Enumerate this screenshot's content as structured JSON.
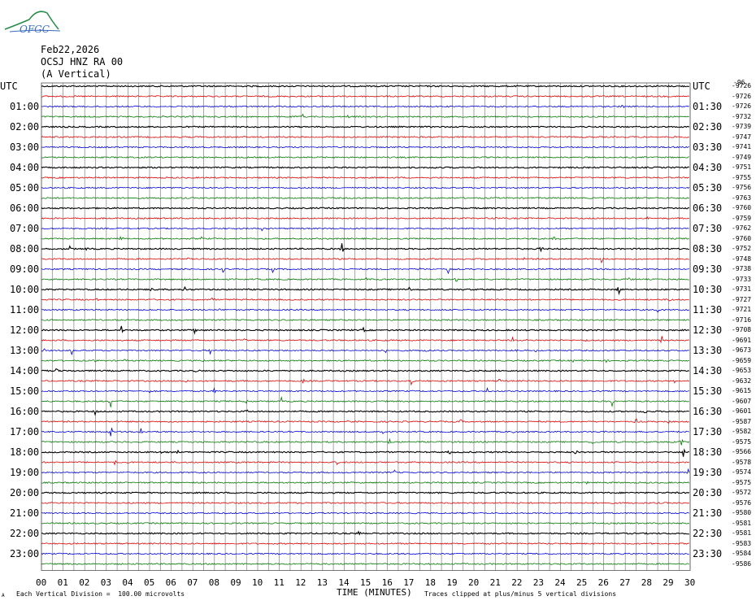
{
  "header": {
    "logo_text": "OFGC",
    "date": "Feb22,2026",
    "station": "OCSJ HNZ RA 00",
    "orientation": "(A Vertical)"
  },
  "axes": {
    "left_unit": "UTC",
    "right_unit": "UTC",
    "xlabel": "TIME (MINUTES)"
  },
  "footer": {
    "scale_note": "Each Vertical Division =  100.00 microvolts",
    "clip_note": "Traces clipped at plus/minus 5 vertical divisions",
    "corner_mark": "A"
  },
  "colors": {
    "trace_cycle": [
      "#000000",
      "#dd0000",
      "#0000dd",
      "#007700"
    ],
    "grid": "#808080"
  },
  "chart_data": {
    "type": "line",
    "title": "",
    "x_ticks": [
      "00",
      "01",
      "02",
      "03",
      "04",
      "05",
      "06",
      "07",
      "08",
      "09",
      "10",
      "11",
      "12",
      "13",
      "14",
      "15",
      "16",
      "17",
      "18",
      "19",
      "20",
      "21",
      "22",
      "23",
      "24",
      "25",
      "26",
      "27",
      "28",
      "29",
      "30"
    ],
    "xlim": [
      0,
      30
    ],
    "left_labels": [
      "UTC",
      "01:00",
      "02:00",
      "03:00",
      "04:00",
      "05:00",
      "06:00",
      "07:00",
      "08:00",
      "09:00",
      "10:00",
      "11:00",
      "12:00",
      "13:00",
      "14:00",
      "15:00",
      "16:00",
      "17:00",
      "18:00",
      "19:00",
      "20:00",
      "21:00",
      "22:00",
      "23:00"
    ],
    "right_labels": [
      "UTC",
      "01:30",
      "02:30",
      "03:30",
      "04:30",
      "05:30",
      "06:30",
      "07:30",
      "08:30",
      "09:30",
      "10:30",
      "11:30",
      "12:30",
      "13:30",
      "14:30",
      "15:30",
      "16:30",
      "17:30",
      "18:30",
      "19:30",
      "20:30",
      "21:30",
      "22:30",
      "23:30"
    ],
    "trace_offsets": [
      "-9726",
      "-9726",
      "-9726",
      "-9732",
      "-9739",
      "-9747",
      "-9741",
      "-9749",
      "-9751",
      "-9755",
      "-9756",
      "-9763",
      "-9760",
      "-9759",
      "-9762",
      "-9760",
      "-9752",
      "-9748",
      "-9738",
      "-9733",
      "-9731",
      "-9727",
      "-9721",
      "-9716",
      "-9708",
      "-9691",
      "-9673",
      "-9659",
      "-9653",
      "-9632",
      "-9615",
      "-9607",
      "-9601",
      "-9587",
      "-9582",
      "-9575",
      "-9566",
      "-9578",
      "-9574",
      "-9575",
      "-9572",
      "-9576",
      "-9580",
      "-9581",
      "-9581",
      "-9583",
      "-9584",
      "-9586"
    ],
    "top_offset_extra": "-96",
    "traces": 48,
    "events": [
      {
        "trace": 3,
        "minute": 12.1,
        "amp": 6
      },
      {
        "trace": 3,
        "minute": 14.2,
        "amp": 4
      },
      {
        "trace": 2,
        "minute": 26.9,
        "amp": 5
      },
      {
        "trace": 8,
        "minute": 18.3,
        "amp": 3
      },
      {
        "trace": 13,
        "minute": 21.0,
        "amp": 6
      },
      {
        "trace": 13,
        "minute": 28.0,
        "amp": 4
      },
      {
        "trace": 14,
        "minute": 10.2,
        "amp": 5
      },
      {
        "trace": 15,
        "minute": 3.7,
        "amp": 7
      },
      {
        "trace": 15,
        "minute": 7.4,
        "amp": 4
      },
      {
        "trace": 15,
        "minute": 23.7,
        "amp": 5
      },
      {
        "trace": 16,
        "minute": 1.3,
        "amp": 6
      },
      {
        "trace": 16,
        "minute": 13.9,
        "amp": 8
      },
      {
        "trace": 16,
        "minute": 23.1,
        "amp": 7
      },
      {
        "trace": 16,
        "minute": 2.1,
        "amp": 3
      },
      {
        "trace": 17,
        "minute": 6.8,
        "amp": 4
      },
      {
        "trace": 17,
        "minute": 25.9,
        "amp": 9
      },
      {
        "trace": 17,
        "minute": 22.3,
        "amp": 3
      },
      {
        "trace": 18,
        "minute": 8.4,
        "amp": 6
      },
      {
        "trace": 18,
        "minute": 10.7,
        "amp": 5
      },
      {
        "trace": 18,
        "minute": 18.8,
        "amp": 7
      },
      {
        "trace": 18,
        "minute": 17.5,
        "amp": 3
      },
      {
        "trace": 19,
        "minute": 19.2,
        "amp": 5
      },
      {
        "trace": 19,
        "minute": 27.2,
        "amp": 5
      },
      {
        "trace": 19,
        "minute": 15.0,
        "amp": 3
      },
      {
        "trace": 20,
        "minute": 6.6,
        "amp": 10
      },
      {
        "trace": 20,
        "minute": 17.0,
        "amp": 7
      },
      {
        "trace": 20,
        "minute": 26.7,
        "amp": 9
      },
      {
        "trace": 20,
        "minute": 5.1,
        "amp": 3
      },
      {
        "trace": 21,
        "minute": 2.6,
        "amp": 6
      },
      {
        "trace": 21,
        "minute": 7.9,
        "amp": 4
      },
      {
        "trace": 21,
        "minute": 21.0,
        "amp": 4
      },
      {
        "trace": 21,
        "minute": 29.1,
        "amp": 4
      },
      {
        "trace": 22,
        "minute": 28.5,
        "amp": 5
      },
      {
        "trace": 22,
        "minute": 8.2,
        "amp": 3
      },
      {
        "trace": 24,
        "minute": 3.7,
        "amp": 7
      },
      {
        "trace": 24,
        "minute": 7.1,
        "amp": 6
      },
      {
        "trace": 24,
        "minute": 14.9,
        "amp": 7
      },
      {
        "trace": 25,
        "minute": 9.4,
        "amp": 3
      },
      {
        "trace": 25,
        "minute": 21.8,
        "amp": 6
      },
      {
        "trace": 25,
        "minute": 25.2,
        "amp": 5
      },
      {
        "trace": 25,
        "minute": 28.7,
        "amp": 7
      },
      {
        "trace": 26,
        "minute": 0.1,
        "amp": 4
      },
      {
        "trace": 26,
        "minute": 1.4,
        "amp": 5
      },
      {
        "trace": 26,
        "minute": 7.8,
        "amp": 5
      },
      {
        "trace": 26,
        "minute": 14.4,
        "amp": 5
      },
      {
        "trace": 26,
        "minute": 15.9,
        "amp": 6
      },
      {
        "trace": 26,
        "minute": 17.8,
        "amp": 4
      },
      {
        "trace": 26,
        "minute": 22.0,
        "amp": 5
      },
      {
        "trace": 26,
        "minute": 22.9,
        "amp": 4
      },
      {
        "trace": 27,
        "minute": 2.5,
        "amp": 4
      },
      {
        "trace": 27,
        "minute": 3.8,
        "amp": 5
      },
      {
        "trace": 27,
        "minute": 7.5,
        "amp": 4
      },
      {
        "trace": 27,
        "minute": 24.6,
        "amp": 5
      },
      {
        "trace": 27,
        "minute": 26.1,
        "amp": 4
      },
      {
        "trace": 28,
        "minute": 0.7,
        "amp": 6
      },
      {
        "trace": 28,
        "minute": 7.2,
        "amp": 6
      },
      {
        "trace": 29,
        "minute": 6.7,
        "amp": 4
      },
      {
        "trace": 29,
        "minute": 12.1,
        "amp": 5
      },
      {
        "trace": 29,
        "minute": 17.1,
        "amp": 5
      },
      {
        "trace": 29,
        "minute": 21.2,
        "amp": 5
      },
      {
        "trace": 29,
        "minute": 29.3,
        "amp": 5
      },
      {
        "trace": 30,
        "minute": 5.0,
        "amp": 6
      },
      {
        "trace": 30,
        "minute": 8.0,
        "amp": 5
      },
      {
        "trace": 30,
        "minute": 20.6,
        "amp": 5
      },
      {
        "trace": 31,
        "minute": 3.2,
        "amp": 9
      },
      {
        "trace": 31,
        "minute": 9.5,
        "amp": 7
      },
      {
        "trace": 31,
        "minute": 11.1,
        "amp": 5
      },
      {
        "trace": 31,
        "minute": 17.5,
        "amp": 3
      },
      {
        "trace": 31,
        "minute": 26.4,
        "amp": 9
      },
      {
        "trace": 32,
        "minute": 2.5,
        "amp": 7
      },
      {
        "trace": 32,
        "minute": 9.5,
        "amp": 4
      },
      {
        "trace": 32,
        "minute": 27.9,
        "amp": 5
      },
      {
        "trace": 33,
        "minute": 7.1,
        "amp": 6
      },
      {
        "trace": 33,
        "minute": 14.2,
        "amp": 3
      },
      {
        "trace": 33,
        "minute": 19.4,
        "amp": 4
      },
      {
        "trace": 33,
        "minute": 27.5,
        "amp": 7
      },
      {
        "trace": 33,
        "minute": 29.0,
        "amp": 3
      },
      {
        "trace": 33,
        "minute": 0.3,
        "amp": 3
      },
      {
        "trace": 34,
        "minute": 3.2,
        "amp": 14
      },
      {
        "trace": 34,
        "minute": 4.6,
        "amp": 7
      },
      {
        "trace": 34,
        "minute": 15.8,
        "amp": 7
      },
      {
        "trace": 34,
        "minute": 21.8,
        "amp": 4
      },
      {
        "trace": 35,
        "minute": 9.4,
        "amp": 5
      },
      {
        "trace": 35,
        "minute": 16.1,
        "amp": 5
      },
      {
        "trace": 35,
        "minute": 25.5,
        "amp": 6
      },
      {
        "trace": 35,
        "minute": 29.6,
        "amp": 8
      },
      {
        "trace": 36,
        "minute": 5.6,
        "amp": 5
      },
      {
        "trace": 36,
        "minute": 6.3,
        "amp": 4
      },
      {
        "trace": 36,
        "minute": 18.9,
        "amp": 5
      },
      {
        "trace": 36,
        "minute": 24.7,
        "amp": 6
      },
      {
        "trace": 36,
        "minute": 29.7,
        "amp": 14
      },
      {
        "trace": 37,
        "minute": 3.4,
        "amp": 6
      },
      {
        "trace": 37,
        "minute": 13.7,
        "amp": 7
      },
      {
        "trace": 38,
        "minute": 16.3,
        "amp": 6
      },
      {
        "trace": 38,
        "minute": 29.9,
        "amp": 6
      },
      {
        "trace": 39,
        "minute": 18.4,
        "amp": 4
      },
      {
        "trace": 39,
        "minute": 25.2,
        "amp": 5
      },
      {
        "trace": 44,
        "minute": 14.7,
        "amp": 6
      }
    ]
  }
}
